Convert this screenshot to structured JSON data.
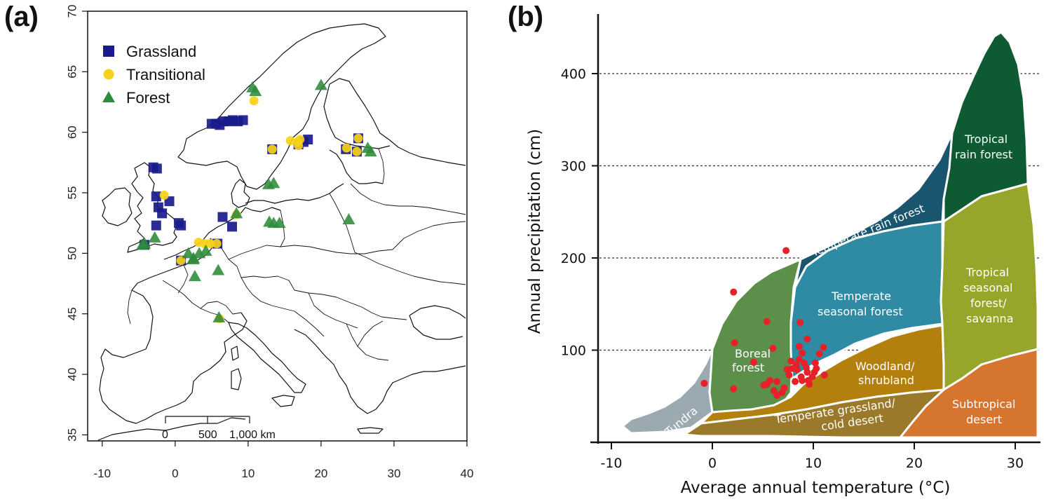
{
  "panels": {
    "a": "(a)",
    "b": "(b)"
  },
  "colors": {
    "grassland": "#1a1a8c",
    "transitional": "#f7d117",
    "forest": "#2e8b3a",
    "site_point": "#e8202a"
  },
  "chart_data": [
    {
      "type": "scatter",
      "title": "",
      "xlabel": "",
      "ylabel": "",
      "xlim": [
        -12,
        40
      ],
      "ylim": [
        34.5,
        70
      ],
      "xticks": [
        "-10",
        "0",
        "10",
        "20",
        "30",
        "40"
      ],
      "yticks": [
        "35",
        "40",
        "45",
        "50",
        "55",
        "60",
        "65",
        "70"
      ],
      "legend_position": "top-left",
      "scale_bar": {
        "labels": [
          "0",
          "500",
          "1,000 km"
        ]
      },
      "series": [
        {
          "name": "Grassland",
          "marker": "square",
          "points": [
            [
              -3,
              57.1
            ],
            [
              -2.5,
              57
            ],
            [
              -2.6,
              54.7
            ],
            [
              -2.3,
              53.8
            ],
            [
              -1.8,
              53.3
            ],
            [
              -0.8,
              54.3
            ],
            [
              -2.6,
              52.3
            ],
            [
              0.5,
              52.5
            ],
            [
              0.8,
              52.3
            ],
            [
              -4.2,
              50.7
            ],
            [
              0.8,
              49.4
            ],
            [
              5.8,
              50.8
            ],
            [
              6.5,
              53
            ],
            [
              7.8,
              52.2
            ],
            [
              5,
              60.7
            ],
            [
              5.6,
              60.7
            ],
            [
              6.1,
              60.6
            ],
            [
              6.6,
              60.9
            ],
            [
              7.3,
              60.9
            ],
            [
              7.9,
              61
            ],
            [
              8.6,
              60.9
            ],
            [
              9.3,
              61
            ],
            [
              13.3,
              58.6
            ],
            [
              16.9,
              59
            ],
            [
              17.6,
              59.2
            ],
            [
              18.2,
              59.4
            ],
            [
              23.4,
              58.6
            ],
            [
              24.9,
              58.4
            ],
            [
              25.1,
              59.5
            ]
          ]
        },
        {
          "name": "Transitional",
          "marker": "circle",
          "points": [
            [
              10.8,
              62.6
            ],
            [
              13.3,
              58.6
            ],
            [
              15.8,
              59.3
            ],
            [
              16.8,
              59.2
            ],
            [
              17.1,
              59.4
            ],
            [
              16.9,
              58.9
            ],
            [
              23.5,
              58.7
            ],
            [
              25.1,
              59.5
            ],
            [
              24.9,
              58.4
            ],
            [
              -1.5,
              54.8
            ],
            [
              3.2,
              50.9
            ],
            [
              4,
              50.8
            ],
            [
              4.8,
              50.8
            ],
            [
              5.7,
              50.8
            ],
            [
              0.8,
              49.4
            ],
            [
              8.4,
              53.2
            ],
            [
              6.1,
              44.6
            ]
          ]
        },
        {
          "name": "Forest",
          "marker": "triangle",
          "points": [
            [
              10.6,
              63.7
            ],
            [
              11,
              63.4
            ],
            [
              20,
              63.9
            ],
            [
              26.8,
              58.4
            ],
            [
              26.4,
              58.7
            ],
            [
              12.8,
              55.7
            ],
            [
              13.5,
              55.8
            ],
            [
              8.4,
              53.3
            ],
            [
              12.9,
              52.6
            ],
            [
              13.5,
              52.5
            ],
            [
              14.3,
              52.5
            ],
            [
              23.8,
              52.8
            ],
            [
              -4.5,
              50.7
            ],
            [
              -2.8,
              51.3
            ],
            [
              -4.2,
              50.8
            ],
            [
              1.8,
              50
            ],
            [
              2.5,
              49.6
            ],
            [
              2.5,
              49.5
            ],
            [
              3.3,
              50
            ],
            [
              4.2,
              50.2
            ],
            [
              2.7,
              48.1
            ],
            [
              5.9,
              48.6
            ],
            [
              6,
              44.7
            ]
          ]
        }
      ]
    },
    {
      "type": "scatter",
      "title": "",
      "xlabel": "Average annual temperature (°C)",
      "ylabel": "Annual precipitation (cm)",
      "xlim": [
        -12,
        32
      ],
      "ylim": [
        0,
        450
      ],
      "xticks": [
        "-10",
        "0",
        "10",
        "20",
        "30"
      ],
      "yticks": [
        "100",
        "200",
        "300",
        "400"
      ],
      "grid": "horizontal dashed",
      "biomes": [
        {
          "label": [
            "Tundra"
          ],
          "color": "#9aaab0"
        },
        {
          "label": [
            "Boreal",
            "forest"
          ],
          "color": "#5b8f4a"
        },
        {
          "label": [
            "Temperate rain forest"
          ],
          "color": "#19556f"
        },
        {
          "label": [
            "Temperate",
            "seasonal forest"
          ],
          "color": "#2f8aa3"
        },
        {
          "label": [
            "Woodland/",
            "shrubland"
          ],
          "color": "#b3800d"
        },
        {
          "label": [
            "Temperate grassland/",
            "cold desert"
          ],
          "color": "#9a7a2a"
        },
        {
          "label": [
            "Tropical",
            "rain forest"
          ],
          "color": "#0d5a33"
        },
        {
          "label": [
            "Tropical",
            "seasonal",
            "forest/",
            "savanna"
          ],
          "color": "#97a52a"
        },
        {
          "label": [
            "Subtropical",
            "desert"
          ],
          "color": "#d67530"
        }
      ],
      "series": [
        {
          "name": "",
          "points": [
            [
              7.3,
              208
            ],
            [
              2.1,
              163
            ],
            [
              -0.8,
              64
            ],
            [
              2.1,
              58
            ],
            [
              2.2,
              108
            ],
            [
              4.1,
              87
            ],
            [
              5.4,
              131
            ],
            [
              6,
              102
            ],
            [
              5.1,
              62
            ],
            [
              5.4,
              63
            ],
            [
              5.7,
              67
            ],
            [
              6.1,
              56
            ],
            [
              6.4,
              51
            ],
            [
              6.9,
              54
            ],
            [
              7.1,
              59
            ],
            [
              6.4,
              66
            ],
            [
              7.6,
              73
            ],
            [
              7.9,
              80
            ],
            [
              8.3,
              84
            ],
            [
              8.6,
              90
            ],
            [
              8.9,
              97
            ],
            [
              9.1,
              86
            ],
            [
              9.3,
              81
            ],
            [
              8.7,
              130
            ],
            [
              8.6,
              104
            ],
            [
              9.4,
              112
            ],
            [
              8.2,
              66
            ],
            [
              8.8,
              71
            ],
            [
              9.6,
              63
            ],
            [
              10.1,
              76
            ],
            [
              10.3,
              80
            ],
            [
              10.6,
              96
            ],
            [
              11,
              103
            ],
            [
              11.1,
              73
            ],
            [
              9.5,
              67
            ],
            [
              10.2,
              86
            ],
            [
              9.9,
              71
            ],
            [
              8.4,
              79
            ],
            [
              9.4,
              76
            ],
            [
              7.8,
              88
            ],
            [
              7.4,
              79
            ],
            [
              8.9,
              67
            ]
          ]
        }
      ]
    }
  ]
}
